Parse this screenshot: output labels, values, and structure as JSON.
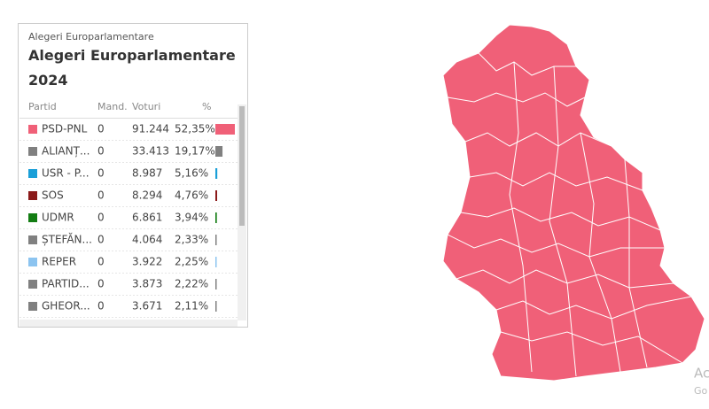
{
  "panel": {
    "subtitle": "Alegeri Europarlamentare",
    "title": "Alegeri Europarlamentare 2024",
    "columns": [
      "Partid",
      "Mand.",
      "Voturi",
      "%"
    ],
    "rows": [
      {
        "party": "PSD-PNL",
        "color": "#f06078",
        "seats": "0",
        "votes": "91.244",
        "percent": {
          "value": 52.35,
          "label": "52,35%"
        }
      },
      {
        "party": "ALIANȚ...",
        "color": "#808080",
        "seats": "0",
        "votes": "33.413",
        "percent": {
          "value": 19.17,
          "label": "19,17%"
        }
      },
      {
        "party": "USR - P...",
        "color": "#1a9fd8",
        "seats": "0",
        "votes": "8.987",
        "percent": {
          "value": 5.16,
          "label": "5,16%"
        }
      },
      {
        "party": "SOS",
        "color": "#8b1a1a",
        "seats": "0",
        "votes": "8.294",
        "percent": {
          "value": 4.76,
          "label": "4,76%"
        }
      },
      {
        "party": "UDMR",
        "color": "#137d13",
        "seats": "0",
        "votes": "6.861",
        "percent": {
          "value": 3.94,
          "label": "3,94%"
        }
      },
      {
        "party": "ȘTEFĂN...",
        "color": "#808080",
        "seats": "0",
        "votes": "4.064",
        "percent": {
          "value": 2.33,
          "label": "2,33%"
        }
      },
      {
        "party": "REPER",
        "color": "#8cc4f0",
        "seats": "0",
        "votes": "3.922",
        "percent": {
          "value": 2.25,
          "label": "2,25%"
        }
      },
      {
        "party": "PARTID...",
        "color": "#808080",
        "seats": "0",
        "votes": "3.873",
        "percent": {
          "value": 2.22,
          "label": "2,22%"
        }
      },
      {
        "party": "GHEOR...",
        "color": "#808080",
        "seats": "0",
        "votes": "3.671",
        "percent": {
          "value": 2.11,
          "label": "2,11%"
        }
      }
    ]
  },
  "watermark": {
    "line1": "Ac",
    "line2": "Go"
  }
}
